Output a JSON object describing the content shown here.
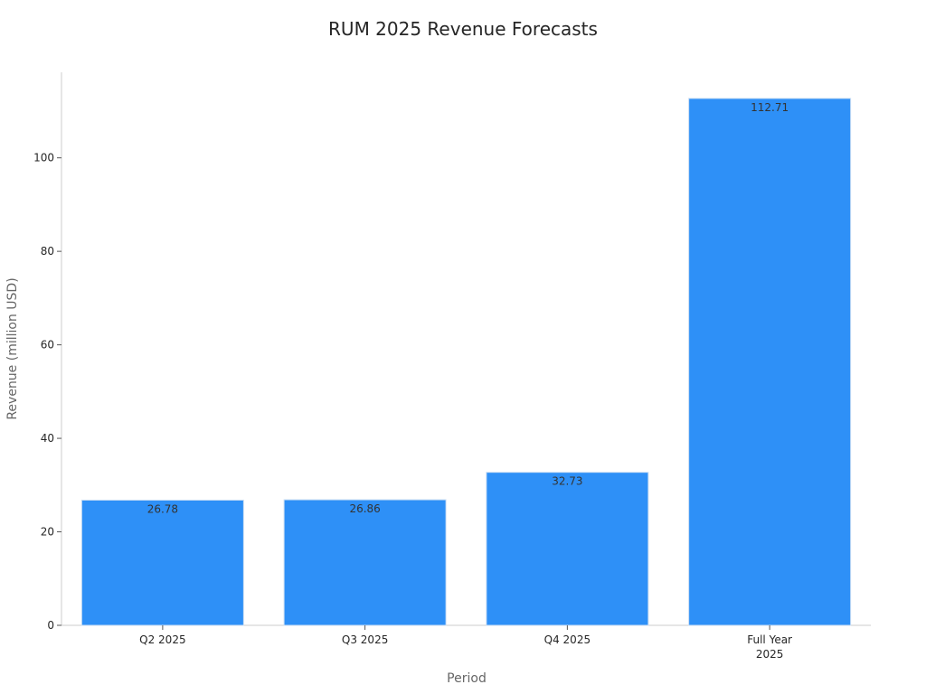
{
  "chart_data": {
    "type": "bar",
    "title": "RUM 2025 Revenue Forecasts",
    "xlabel": "Period",
    "ylabel": "Revenue (million USD)",
    "categories": [
      "Q2 2025",
      "Q3 2025",
      "Q4 2025",
      "Full Year\n2025"
    ],
    "values": [
      26.78,
      26.86,
      32.73,
      112.71
    ],
    "data_labels": [
      "26.78",
      "26.86",
      "32.73",
      "112.71"
    ],
    "yticks": [
      0,
      20,
      40,
      60,
      80,
      100
    ],
    "ylim": [
      0,
      118.3
    ],
    "grid": false,
    "legend": "none",
    "bar_color": "#2e90f7",
    "bar_edge_color": "#c9ddf3"
  }
}
